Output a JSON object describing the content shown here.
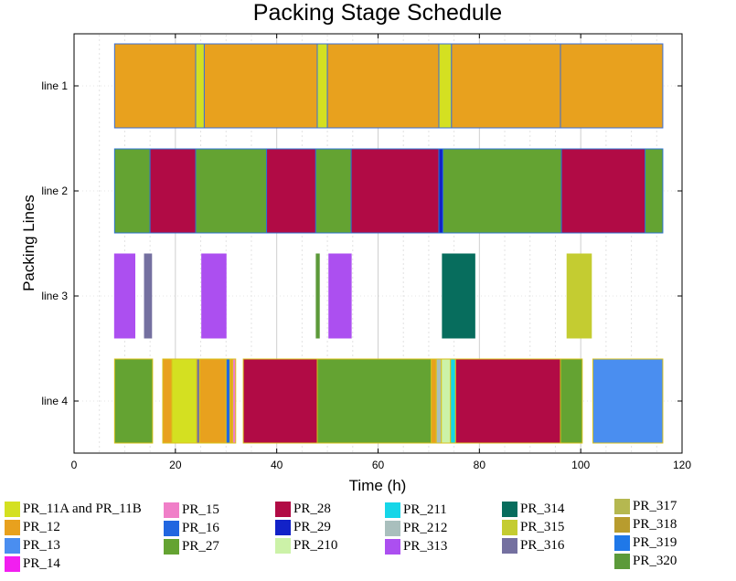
{
  "chart_data": {
    "type": "gantt",
    "title": "Packing Stage Schedule",
    "xlabel": "Time (h)",
    "ylabel": "Packing Lines",
    "xlim": [
      0,
      120
    ],
    "xticks": [
      0,
      20,
      40,
      60,
      80,
      100,
      120
    ],
    "grid": true,
    "lines": [
      "line 1",
      "line 2",
      "line 3",
      "line 4"
    ],
    "products": [
      {
        "name": "PR_11A and PR_11B",
        "color": "#d4e021"
      },
      {
        "name": "PR_12",
        "color": "#e8a11e"
      },
      {
        "name": "PR_13",
        "color": "#4a8ef0"
      },
      {
        "name": "PR_14",
        "color": "#f21ff0"
      },
      {
        "name": "PR_15",
        "color": "#f07fc8"
      },
      {
        "name": "PR_16",
        "color": "#2166e0"
      },
      {
        "name": "PR_27",
        "color": "#64a332"
      },
      {
        "name": "PR_28",
        "color": "#b10b45"
      },
      {
        "name": "PR_29",
        "color": "#1222c8"
      },
      {
        "name": "PR_210",
        "color": "#ccf2a8"
      },
      {
        "name": "PR_211",
        "color": "#16d6e8"
      },
      {
        "name": "PR_212",
        "color": "#a9bfbd"
      },
      {
        "name": "PR_313",
        "color": "#ac4ff0"
      },
      {
        "name": "PR_314",
        "color": "#076d5d"
      },
      {
        "name": "PR_315",
        "color": "#c4cc31"
      },
      {
        "name": "PR_316",
        "color": "#7470a0"
      },
      {
        "name": "PR_317",
        "color": "#b5b850"
      },
      {
        "name": "PR_318",
        "color": "#b89c2e"
      },
      {
        "name": "PR_319",
        "color": "#1f78e8"
      },
      {
        "name": "PR_320",
        "color": "#5c9a3a"
      }
    ],
    "tasks": [
      {
        "line": 0,
        "start": 8,
        "end": 24,
        "product": "PR_12"
      },
      {
        "line": 0,
        "start": 24,
        "end": 25.7,
        "product": "PR_11A and PR_11B"
      },
      {
        "line": 0,
        "start": 25.7,
        "end": 48,
        "product": "PR_12"
      },
      {
        "line": 0,
        "start": 48,
        "end": 50,
        "product": "PR_11A and PR_11B"
      },
      {
        "line": 0,
        "start": 50,
        "end": 72,
        "product": "PR_12"
      },
      {
        "line": 0,
        "start": 72,
        "end": 74.5,
        "product": "PR_11A and PR_11B"
      },
      {
        "line": 0,
        "start": 74.5,
        "end": 96,
        "product": "PR_12"
      },
      {
        "line": 0,
        "start": 96,
        "end": 116.2,
        "product": "PR_12"
      },
      {
        "line": 1,
        "start": 8,
        "end": 15,
        "product": "PR_27"
      },
      {
        "line": 1,
        "start": 15,
        "end": 24,
        "product": "PR_28"
      },
      {
        "line": 1,
        "start": 24,
        "end": 38,
        "product": "PR_27"
      },
      {
        "line": 1,
        "start": 38,
        "end": 47.7,
        "product": "PR_28"
      },
      {
        "line": 1,
        "start": 47.7,
        "end": 54.7,
        "product": "PR_27"
      },
      {
        "line": 1,
        "start": 54.7,
        "end": 72,
        "product": "PR_28"
      },
      {
        "line": 1,
        "start": 72,
        "end": 72.8,
        "product": "PR_29"
      },
      {
        "line": 1,
        "start": 72.8,
        "end": 96.2,
        "product": "PR_27"
      },
      {
        "line": 1,
        "start": 96.2,
        "end": 112.7,
        "product": "PR_28"
      },
      {
        "line": 1,
        "start": 112.7,
        "end": 116.2,
        "product": "PR_27"
      },
      {
        "line": 2,
        "start": 8,
        "end": 12,
        "product": "PR_313"
      },
      {
        "line": 2,
        "start": 13.9,
        "end": 15.3,
        "product": "PR_316"
      },
      {
        "line": 2,
        "start": 25.2,
        "end": 30,
        "product": "PR_313"
      },
      {
        "line": 2,
        "start": 47.8,
        "end": 48.4,
        "product": "PR_320"
      },
      {
        "line": 2,
        "start": 50.3,
        "end": 54.7,
        "product": "PR_313"
      },
      {
        "line": 2,
        "start": 72.7,
        "end": 79.1,
        "product": "PR_314"
      },
      {
        "line": 2,
        "start": 97.3,
        "end": 102.1,
        "product": "PR_315"
      },
      {
        "line": 3,
        "start": 8,
        "end": 15.5,
        "product": "PR_27"
      },
      {
        "line": 3,
        "start": 17.5,
        "end": 19.3,
        "product": "PR_12"
      },
      {
        "line": 3,
        "start": 19.3,
        "end": 24.2,
        "product": "PR_11A and PR_11B"
      },
      {
        "line": 3,
        "start": 24.2,
        "end": 24.8,
        "product": "PR_316"
      },
      {
        "line": 3,
        "start": 24.8,
        "end": 30,
        "product": "PR_12"
      },
      {
        "line": 3,
        "start": 30,
        "end": 30.8,
        "product": "PR_16"
      },
      {
        "line": 3,
        "start": 30.8,
        "end": 31.3,
        "product": "PR_12"
      },
      {
        "line": 3,
        "start": 31.3,
        "end": 31.9,
        "product": "PR_15"
      },
      {
        "line": 3,
        "start": 33.4,
        "end": 48,
        "product": "PR_28"
      },
      {
        "line": 3,
        "start": 48,
        "end": 70.5,
        "product": "PR_27"
      },
      {
        "line": 3,
        "start": 70.5,
        "end": 71.5,
        "product": "PR_12"
      },
      {
        "line": 3,
        "start": 71.5,
        "end": 72.5,
        "product": "PR_212"
      },
      {
        "line": 3,
        "start": 72.5,
        "end": 74.3,
        "product": "PR_210"
      },
      {
        "line": 3,
        "start": 74.3,
        "end": 75.3,
        "product": "PR_211"
      },
      {
        "line": 3,
        "start": 75.3,
        "end": 96,
        "product": "PR_28"
      },
      {
        "line": 3,
        "start": 96,
        "end": 100.3,
        "product": "PR_27"
      },
      {
        "line": 3,
        "start": 102.4,
        "end": 116.2,
        "product": "PR_13"
      }
    ]
  }
}
